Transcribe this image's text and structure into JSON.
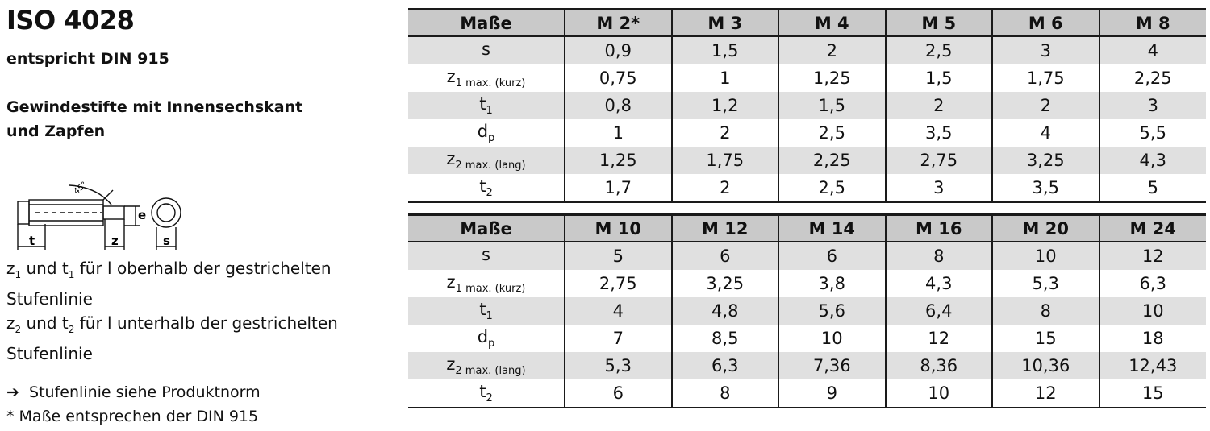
{
  "heading": {
    "title": "ISO 4028",
    "subtitle": "entspricht DIN 915",
    "desc_line1": "Gewindestifte mit Innensechskant",
    "desc_line2": "und Zapfen"
  },
  "drawing": {
    "angle_label": "45°",
    "label_t": "t",
    "label_z": "z",
    "label_e": "e",
    "label_s": "s"
  },
  "notes": {
    "n1_z": "z",
    "n1_z_sub": "1",
    "n1_mid": " und t",
    "n1_t_sub": "1",
    "n1_rest": " für l oberhalb der gestrichelten",
    "n1_line2": "Stufenlinie",
    "n2_z": "z",
    "n2_z_sub": "2",
    "n2_mid": " und t",
    "n2_t_sub": "2",
    "n2_rest": " für l unterhalb der gestrichelten",
    "n2_line2": "Stufenlinie"
  },
  "footnotes": {
    "arrow": "➔",
    "f1": "Stufenlinie siehe Produktnorm",
    "f2": "* Maße entsprechen der DIN 915"
  },
  "row_labels": [
    {
      "base": "s",
      "sub": "",
      "extra": ""
    },
    {
      "base": "z",
      "sub": "1 max. (kurz)",
      "extra": ""
    },
    {
      "base": "t",
      "sub": "1",
      "extra": ""
    },
    {
      "base": "d",
      "sub": "p",
      "extra": ""
    },
    {
      "base": "z",
      "sub": "2 max. (lang)",
      "extra": ""
    },
    {
      "base": "t",
      "sub": "2",
      "extra": ""
    }
  ],
  "tables": [
    {
      "header": [
        "Maße",
        "M 2*",
        "M 3",
        "M 4",
        "M 5",
        "M 6",
        "M 8"
      ],
      "rows": [
        [
          "0,9",
          "1,5",
          "2",
          "2,5",
          "3",
          "4"
        ],
        [
          "0,75",
          "1",
          "1,25",
          "1,5",
          "1,75",
          "2,25"
        ],
        [
          "0,8",
          "1,2",
          "1,5",
          "2",
          "2",
          "3"
        ],
        [
          "1",
          "2",
          "2,5",
          "3,5",
          "4",
          "5,5"
        ],
        [
          "1,25",
          "1,75",
          "2,25",
          "2,75",
          "3,25",
          "4,3"
        ],
        [
          "1,7",
          "2",
          "2,5",
          "3",
          "3,5",
          "5"
        ]
      ]
    },
    {
      "header": [
        "Maße",
        "M 10",
        "M 12",
        "M 14",
        "M 16",
        "M 20",
        "M 24"
      ],
      "rows": [
        [
          "5",
          "6",
          "6",
          "8",
          "10",
          "12"
        ],
        [
          "2,75",
          "3,25",
          "3,8",
          "4,3",
          "5,3",
          "6,3"
        ],
        [
          "4",
          "4,8",
          "5,6",
          "6,4",
          "8",
          "10"
        ],
        [
          "7",
          "8,5",
          "10",
          "12",
          "15",
          "18"
        ],
        [
          "5,3",
          "6,3",
          "7,36",
          "8,36",
          "10,36",
          "12,43"
        ],
        [
          "6",
          "8",
          "9",
          "10",
          "12",
          "15"
        ]
      ]
    }
  ]
}
